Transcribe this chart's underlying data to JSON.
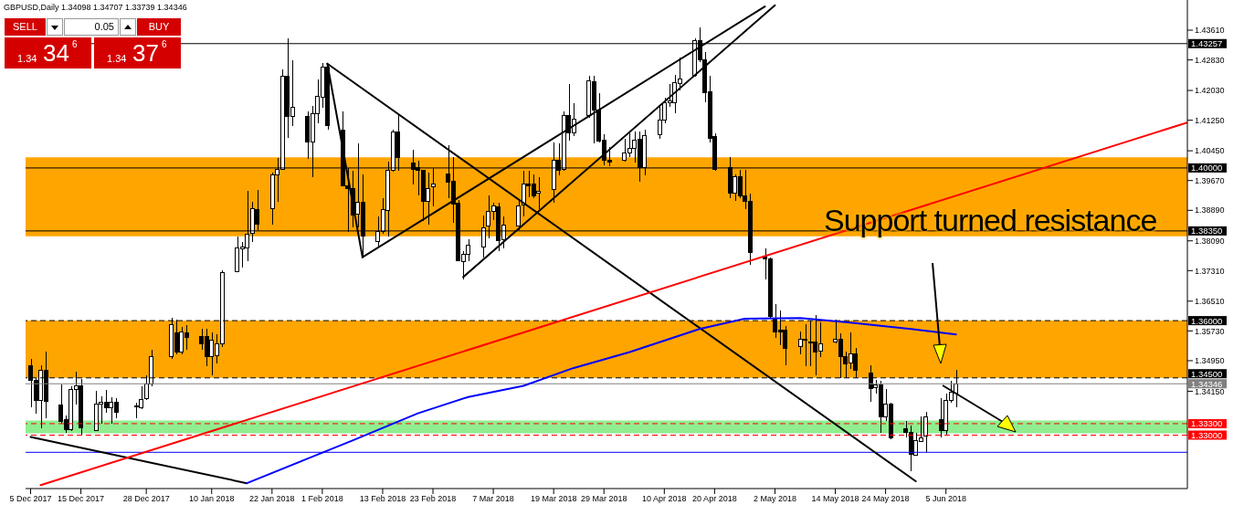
{
  "chart_data": {
    "type": "candlestick",
    "title": "GBPUSD,Daily  1.34098 1.34707 1.33739 1.34346",
    "color": "#000000",
    "x": [
      "2017-12-05",
      "2017-12-06",
      "2017-12-07",
      "2017-12-08",
      "2017-12-11",
      "2017-12-12",
      "2017-12-13",
      "2017-12-14",
      "2017-12-15",
      "2017-12-18",
      "2017-12-19",
      "2017-12-20",
      "2017-12-21",
      "2017-12-22",
      "2017-12-26",
      "2017-12-27",
      "2017-12-28",
      "2017-12-29",
      "2018-01-02",
      "2018-01-03",
      "2018-01-04",
      "2018-01-05",
      "2018-01-08",
      "2018-01-09",
      "2018-01-10",
      "2018-01-11",
      "2018-01-12",
      "2018-01-15",
      "2018-01-16",
      "2018-01-17",
      "2018-01-18",
      "2018-01-19",
      "2018-01-22",
      "2018-01-23",
      "2018-01-24",
      "2018-01-25",
      "2018-01-26",
      "2018-01-29",
      "2018-01-30",
      "2018-01-31",
      "2018-02-01",
      "2018-02-02",
      "2018-02-05",
      "2018-02-06",
      "2018-02-07",
      "2018-02-08",
      "2018-02-09",
      "2018-02-12",
      "2018-02-13",
      "2018-02-14",
      "2018-02-15",
      "2018-02-16",
      "2018-02-19",
      "2018-02-20",
      "2018-02-21",
      "2018-02-22",
      "2018-02-23",
      "2018-02-26",
      "2018-02-27",
      "2018-02-28",
      "2018-03-01",
      "2018-03-02",
      "2018-03-05",
      "2018-03-06",
      "2018-03-07",
      "2018-03-08",
      "2018-03-09",
      "2018-03-12",
      "2018-03-13",
      "2018-03-14",
      "2018-03-15",
      "2018-03-16",
      "2018-03-19",
      "2018-03-20",
      "2018-03-21",
      "2018-03-22",
      "2018-03-23",
      "2018-03-26",
      "2018-03-27",
      "2018-03-28",
      "2018-03-29",
      "2018-03-30",
      "2018-04-02",
      "2018-04-03",
      "2018-04-04",
      "2018-04-05",
      "2018-04-06",
      "2018-04-09",
      "2018-04-10",
      "2018-04-11",
      "2018-04-12",
      "2018-04-13",
      "2018-04-16",
      "2018-04-17",
      "2018-04-18",
      "2018-04-19",
      "2018-04-20",
      "2018-04-23",
      "2018-04-24",
      "2018-04-25",
      "2018-04-26",
      "2018-04-27",
      "2018-04-30",
      "2018-05-01",
      "2018-05-02",
      "2018-05-03",
      "2018-05-04",
      "2018-05-07",
      "2018-05-08",
      "2018-05-09",
      "2018-05-10",
      "2018-05-11",
      "2018-05-14",
      "2018-05-15",
      "2018-05-16",
      "2018-05-17",
      "2018-05-18",
      "2018-05-21",
      "2018-05-22",
      "2018-05-23",
      "2018-05-24",
      "2018-05-25",
      "2018-05-28",
      "2018-05-29",
      "2018-05-30",
      "2018-05-31",
      "2018-06-01",
      "2018-06-04",
      "2018-06-05",
      "2018-06-06",
      "2018-06-07"
    ],
    "ohlc": [
      [
        1.3481,
        1.35,
        1.3374,
        1.3443
      ],
      [
        1.3443,
        1.345,
        1.3355,
        1.339
      ],
      [
        1.339,
        1.3483,
        1.3319,
        1.3471
      ],
      [
        1.3471,
        1.3519,
        1.3345,
        1.3388
      ],
      [
        1.3379,
        1.3433,
        1.3329,
        1.3336
      ],
      [
        1.334,
        1.3352,
        1.3305,
        1.3314
      ],
      [
        1.3314,
        1.3429,
        1.331,
        1.3419
      ],
      [
        1.3419,
        1.3467,
        1.3381,
        1.3429
      ],
      [
        1.3429,
        1.3448,
        1.3302,
        1.3319
      ],
      [
        1.3312,
        1.3417,
        1.331,
        1.3381
      ],
      [
        1.3381,
        1.3402,
        1.3331,
        1.3386
      ],
      [
        1.3386,
        1.3419,
        1.3359,
        1.3371
      ],
      [
        1.3371,
        1.34,
        1.3331,
        1.3386
      ],
      [
        1.3386,
        1.3398,
        1.3345,
        1.3359
      ],
      [
        1.3374,
        1.3386,
        1.3345,
        1.3376
      ],
      [
        1.3371,
        1.3429,
        1.3367,
        1.3393
      ],
      [
        1.3395,
        1.3457,
        1.3393,
        1.3433
      ],
      [
        1.3433,
        1.3524,
        1.3429,
        1.3505
      ],
      [
        1.3505,
        1.3607,
        1.35,
        1.359
      ],
      [
        1.3569,
        1.3602,
        1.3512,
        1.3517
      ],
      [
        1.3517,
        1.3583,
        1.3512,
        1.3571
      ],
      [
        1.3569,
        1.3588,
        1.3524,
        1.3555
      ],
      [
        1.3559,
        1.3578,
        1.3524,
        1.354
      ],
      [
        1.3559,
        1.3578,
        1.3481,
        1.3505
      ],
      [
        1.3505,
        1.3569,
        1.3457,
        1.3548
      ],
      [
        1.3507,
        1.3564,
        1.3488,
        1.354
      ],
      [
        1.354,
        1.3733,
        1.3531,
        1.3726
      ],
      [
        1.3728,
        1.3821,
        1.3726,
        1.379
      ],
      [
        1.3788,
        1.3805,
        1.3738,
        1.3793
      ],
      [
        1.379,
        1.394,
        1.3755,
        1.3826
      ],
      [
        1.3828,
        1.3912,
        1.3805,
        1.3893
      ],
      [
        1.389,
        1.3943,
        1.3838,
        1.3852
      ],
      [
        1.3893,
        1.3988,
        1.3852,
        1.3983
      ],
      [
        1.3983,
        1.4026,
        1.3912,
        1.3997
      ],
      [
        1.3997,
        1.4257,
        1.3995,
        1.424
      ],
      [
        1.424,
        1.434,
        1.4078,
        1.4135
      ],
      [
        1.4135,
        1.4283,
        1.4109,
        1.4159
      ],
      [
        1.4135,
        1.4147,
        1.4023,
        1.4069
      ],
      [
        1.4069,
        1.4162,
        1.3976,
        1.4143
      ],
      [
        1.4143,
        1.4231,
        1.4116,
        1.4188
      ],
      [
        1.4185,
        1.4276,
        1.4157,
        1.4264
      ],
      [
        1.4264,
        1.4273,
        1.41,
        1.4112
      ],
      [
        1.41,
        1.4147,
        1.3952,
        1.3954
      ],
      [
        1.3954,
        1.4,
        1.3833,
        1.3945
      ],
      [
        1.3945,
        1.3993,
        1.3845,
        1.3876
      ],
      [
        1.3878,
        1.4064,
        1.3845,
        1.3909
      ],
      [
        1.3909,
        1.3983,
        1.3766,
        1.3821
      ],
      [
        1.3807,
        1.3874,
        1.3793,
        1.3833
      ],
      [
        1.3833,
        1.3921,
        1.3828,
        1.389
      ],
      [
        1.3888,
        1.4016,
        1.3821,
        1.3993
      ],
      [
        1.3993,
        1.41,
        1.399,
        1.4095
      ],
      [
        1.4095,
        1.414,
        1.3993,
        1.4028
      ],
      [
        1.4014,
        1.4047,
        1.3957,
        1.3995
      ],
      [
        1.4,
        1.4019,
        1.3928,
        1.3993
      ],
      [
        1.3993,
        1.3995,
        1.3862,
        1.3912
      ],
      [
        1.3912,
        1.3988,
        1.3852,
        1.3947
      ],
      [
        1.395,
        1.4,
        1.39,
        1.3959
      ],
      [
        1.3985,
        1.4059,
        1.3921,
        1.3962
      ],
      [
        1.3964,
        1.4028,
        1.3857,
        1.3905
      ],
      [
        1.3907,
        1.3916,
        1.3755,
        1.3757
      ],
      [
        1.3755,
        1.3783,
        1.3709,
        1.3774
      ],
      [
        1.3774,
        1.3814,
        1.3755,
        1.3797
      ],
      [
        1.3793,
        1.3876,
        1.3766,
        1.3843
      ],
      [
        1.3847,
        1.3928,
        1.3816,
        1.3885
      ],
      [
        1.3885,
        1.3909,
        1.3864,
        1.39
      ],
      [
        1.3897,
        1.3909,
        1.3781,
        1.3809
      ],
      [
        1.3812,
        1.3874,
        1.379,
        1.385
      ],
      [
        1.3847,
        1.3914,
        1.3838,
        1.39
      ],
      [
        1.3902,
        1.3993,
        1.3874,
        1.3957
      ],
      [
        1.3957,
        1.3993,
        1.3924,
        1.3954
      ],
      [
        1.3959,
        1.3983,
        1.3921,
        1.3928
      ],
      [
        1.3933,
        1.3976,
        1.3893,
        1.3938
      ],
      [
        1.3943,
        1.4066,
        1.3909,
        1.4019
      ],
      [
        1.4019,
        1.4064,
        1.3981,
        1.3993
      ],
      [
        1.3995,
        1.4147,
        1.3993,
        1.4138
      ],
      [
        1.4138,
        1.4219,
        1.4071,
        1.4093
      ],
      [
        1.4093,
        1.4169,
        1.4083,
        1.4128
      ],
      [
        1.4138,
        1.4242,
        1.4131,
        1.4228
      ],
      [
        1.4226,
        1.4242,
        1.4064,
        1.4152
      ],
      [
        1.4152,
        1.4195,
        1.4066,
        1.4071
      ],
      [
        1.4073,
        1.4088,
        1.4007,
        1.4019
      ],
      [
        1.4019,
        1.4054,
        1.4004,
        1.4016
      ],
      [
        1.4019,
        1.4076,
        1.4016,
        1.404
      ],
      [
        1.404,
        1.409,
        1.4028,
        1.4052
      ],
      [
        1.4052,
        1.4095,
        1.4014,
        1.4073
      ],
      [
        1.4076,
        1.4095,
        1.3964,
        1.4
      ],
      [
        1.4,
        1.41,
        1.3981,
        1.4085
      ],
      [
        1.4088,
        1.4159,
        1.4076,
        1.4126
      ],
      [
        1.4126,
        1.4185,
        1.4116,
        1.4171
      ],
      [
        1.4171,
        1.4221,
        1.4159,
        1.4176
      ],
      [
        1.4171,
        1.4245,
        1.4143,
        1.4223
      ],
      [
        1.4221,
        1.429,
        1.4202,
        1.4233
      ],
      [
        1.4242,
        1.434,
        1.4238,
        1.4333
      ],
      [
        1.4333,
        1.4369,
        1.4278,
        1.4283
      ],
      [
        1.4283,
        1.4304,
        1.4171,
        1.4197
      ],
      [
        1.42,
        1.4242,
        1.4066,
        1.4078
      ],
      [
        1.4083,
        1.409,
        1.3993,
        1.3995
      ],
      [
        1.4,
        1.4028,
        1.3921,
        1.3935
      ],
      [
        1.3935,
        1.3983,
        1.3914,
        1.3976
      ],
      [
        1.3976,
        1.3995,
        1.3921,
        1.3926
      ],
      [
        1.3928,
        1.3995,
        1.3893,
        1.3912
      ],
      [
        1.3912,
        1.3933,
        1.3745,
        1.3778
      ],
      [
        1.3769,
        1.379,
        1.3709,
        1.3762
      ],
      [
        1.3762,
        1.3766,
        1.3607,
        1.3612
      ],
      [
        1.3607,
        1.3643,
        1.3555,
        1.3571
      ],
      [
        1.3574,
        1.3626,
        1.3536,
        1.3571
      ],
      [
        1.3574,
        1.3586,
        1.3483,
        1.3528
      ],
      [
        1.3531,
        1.3571,
        1.3512,
        1.3552
      ],
      [
        1.3552,
        1.359,
        1.3481,
        1.3548
      ],
      [
        1.3545,
        1.36,
        1.3481,
        1.3543
      ],
      [
        1.3543,
        1.3614,
        1.3457,
        1.3517
      ],
      [
        1.3519,
        1.3595,
        1.3505,
        1.354
      ],
      [
        1.3543,
        1.3602,
        1.354,
        1.3552
      ],
      [
        1.3552,
        1.3567,
        1.345,
        1.3505
      ],
      [
        1.3505,
        1.3519,
        1.345,
        1.3486
      ],
      [
        1.3488,
        1.3569,
        1.3474,
        1.3514
      ],
      [
        1.3514,
        1.3528,
        1.345,
        1.3471
      ],
      [
        1.3462,
        1.3483,
        1.3388,
        1.3421
      ],
      [
        1.3424,
        1.3445,
        1.3409,
        1.3431
      ],
      [
        1.3431,
        1.3443,
        1.3305,
        1.3348
      ],
      [
        1.3348,
        1.3421,
        1.3338,
        1.3381
      ],
      [
        1.3381,
        1.3386,
        1.329,
        1.3293
      ],
      [
        1.3317,
        1.3338,
        1.3295,
        1.3307
      ],
      [
        1.3307,
        1.3326,
        1.3205,
        1.325
      ],
      [
        1.3248,
        1.3305,
        1.3245,
        1.3286
      ],
      [
        1.3283,
        1.3348,
        1.3281,
        1.3293
      ],
      [
        1.3298,
        1.3362,
        1.3255,
        1.3348
      ],
      [
        1.334,
        1.3398,
        1.3295,
        1.3312
      ],
      [
        1.3312,
        1.3409,
        1.3302,
        1.339
      ],
      [
        1.339,
        1.3443,
        1.3386,
        1.3412
      ],
      [
        1.34098,
        1.34707,
        1.33739,
        1.34346
      ]
    ],
    "series": [
      {
        "type": "line",
        "color": "#000000",
        "x": [
          "2017-12-05",
          "2018-01-17"
        ],
        "values": [
          1.3295,
          1.3174
        ]
      },
      {
        "type": "line",
        "color": "#000000",
        "x": [
          "2018-02-02",
          "2018-05-30"
        ],
        "values": [
          1.4273,
          1.3179
        ]
      },
      {
        "type": "line",
        "color": "#000000",
        "x": [
          "2018-02-02",
          "2018-02-09"
        ],
        "values": [
          1.4273,
          1.3766
        ]
      },
      {
        "type": "line",
        "color": "#000000",
        "x": [
          "2018-02-09",
          "2018-04-30"
        ],
        "values": [
          1.3766,
          1.4423
        ]
      },
      {
        "type": "line",
        "color": "#000000",
        "x": [
          "2018-03-01",
          "2018-05-02"
        ],
        "values": [
          1.3714,
          1.4426
        ]
      },
      {
        "type": "line",
        "color": "#ff0000",
        "x": [
          "2017-12-07",
          "2018-07-23"
        ],
        "values": [
          1.3169,
          1.4119
        ]
      },
      {
        "type": "line",
        "color": "#0000ff",
        "x": [
          "2018-01-17",
          "2018-01-29",
          "2018-02-07",
          "2018-02-20",
          "2018-03-02",
          "2018-03-13",
          "2018-03-23",
          "2018-04-03",
          "2018-04-17",
          "2018-04-26",
          "2018-05-07",
          "2018-05-17",
          "2018-05-29",
          "2018-06-07"
        ],
        "values": [
          1.3174,
          1.3238,
          1.3286,
          1.3357,
          1.34,
          1.3429,
          1.3476,
          1.3517,
          1.3578,
          1.3605,
          1.3607,
          1.3595,
          1.3578,
          1.3564
        ]
      }
    ],
    "xlim": [
      "2017-12-04",
      "2018-07-23"
    ],
    "xticks": [
      {
        "value": "2017-12-05",
        "label": "5 Dec 2017"
      },
      {
        "value": "2017-12-15",
        "label": "15 Dec 2017"
      },
      {
        "value": "2017-12-28",
        "label": "28 Dec 2017"
      },
      {
        "value": "2018-01-10",
        "label": "10 Jan 2018"
      },
      {
        "value": "2018-01-22",
        "label": "22 Jan 2018"
      },
      {
        "value": "2018-02-01",
        "label": "1 Feb 2018"
      },
      {
        "value": "2018-02-13",
        "label": "13 Feb 2018"
      },
      {
        "value": "2018-02-23",
        "label": "23 Feb 2018"
      },
      {
        "value": "2018-03-07",
        "label": "7 Mar 2018"
      },
      {
        "value": "2018-03-19",
        "label": "19 Mar 2018"
      },
      {
        "value": "2018-03-29",
        "label": "29 Mar 2018"
      },
      {
        "value": "2018-04-10",
        "label": "10 Apr 2018"
      },
      {
        "value": "2018-04-20",
        "label": "20 Apr 2018"
      },
      {
        "value": "2018-05-02",
        "label": "2 May 2018"
      },
      {
        "value": "2018-05-14",
        "label": "14 May 2018"
      },
      {
        "value": "2018-05-24",
        "label": "24 May 2018"
      },
      {
        "value": "2018-06-05",
        "label": "5 Jun 2018"
      }
    ],
    "ylim": [
      1.316,
      1.444
    ],
    "yticks": [
      {
        "value": 1.4361,
        "label": "1.43610"
      },
      {
        "value": 1.4283,
        "label": "1.42830"
      },
      {
        "value": 1.4203,
        "label": "1.42030"
      },
      {
        "value": 1.4125,
        "label": "1.41250"
      },
      {
        "value": 1.4045,
        "label": "1.40450"
      },
      {
        "value": 1.3967,
        "label": "1.39670"
      },
      {
        "value": 1.3889,
        "label": "1.38890"
      },
      {
        "value": 1.3809,
        "label": "1.38090"
      },
      {
        "value": 1.3731,
        "label": "1.37310"
      },
      {
        "value": 1.3651,
        "label": "1.36510"
      },
      {
        "value": 1.3573,
        "label": "1.35730"
      },
      {
        "value": 1.3495,
        "label": "1.34950"
      },
      {
        "value": 1.3415,
        "label": "1.34150"
      }
    ],
    "bands": [
      {
        "axis": "y",
        "from": 1.3821,
        "to": 1.4028,
        "color": "#ffa500"
      },
      {
        "axis": "y",
        "from": 1.345,
        "to": 1.36,
        "color": "#ffa500"
      },
      {
        "axis": "y",
        "from": 1.3305,
        "to": 1.3338,
        "color": "#90ee90"
      }
    ],
    "ref_lines": [
      {
        "axis": "y",
        "value": 1.43257,
        "label": "1.43257",
        "color": "#000000",
        "line_style": "solid"
      },
      {
        "axis": "y",
        "value": 1.4,
        "label": "1.40000",
        "color": "#000000",
        "line_style": "solid"
      },
      {
        "axis": "y",
        "value": 1.3835,
        "label": "1.38350",
        "color": "#000000",
        "line_style": "solid"
      },
      {
        "axis": "y",
        "value": 1.36,
        "label": "1.36000",
        "color": "#000000",
        "line_style": "dashed"
      },
      {
        "axis": "y",
        "value": 1.345,
        "label": "1.34500",
        "color": "#000000",
        "line_style": "dashed"
      },
      {
        "axis": "y",
        "value": 1.34346,
        "label": "1.34346",
        "color": "#808080",
        "line_style": "solid"
      },
      {
        "axis": "y",
        "value": 1.333,
        "label": "1.33300",
        "color": "#ff0000",
        "line_style": "dashed"
      },
      {
        "axis": "y",
        "value": 1.33,
        "label": "1.33000",
        "color": "#ff0000",
        "line_style": "dashed"
      },
      {
        "axis": "y",
        "value": 1.3255,
        "color": "#0000ff",
        "line_style": "solid"
      }
    ],
    "annotations": [
      "Support turned resistance",
      "SELL",
      "0.05",
      "BUY",
      "1.34",
      "34",
      "6",
      "1.34",
      "37",
      "6"
    ],
    "grid": false,
    "legend": false
  }
}
